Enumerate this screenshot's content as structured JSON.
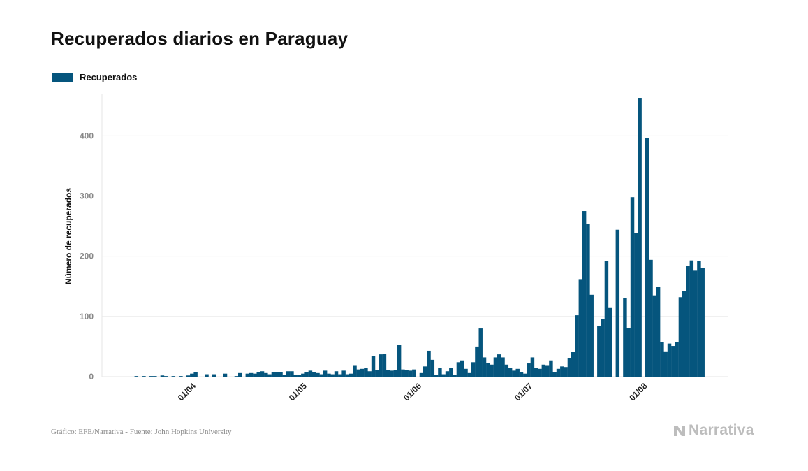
{
  "colors": {
    "bar": "#05557d",
    "grid": "#e6e6e6",
    "tick_text": "#888888",
    "brand": "#bdbdbd"
  },
  "header": {
    "title": "Recuperados diarios en Paraguay"
  },
  "legend": {
    "label": "Recuperados"
  },
  "footer": {
    "source": "Gráfico: EFE/Narrativa - Fuente: John Hopkins University",
    "brand": "Narrativa",
    "brand_icon": "narrativa-logo-icon"
  },
  "chart_data": {
    "type": "bar",
    "title": "Recuperados diarios en Paraguay",
    "ylabel": "Número de recuperados",
    "xlabel": "",
    "ylim": [
      0,
      470
    ],
    "yticks": [
      0,
      100,
      200,
      300,
      400
    ],
    "grid": true,
    "legend_position": "top-left",
    "x_start": "2020-03-15",
    "xtick_labels": [
      "01/04",
      "01/05",
      "01/06",
      "01/07",
      "01/08"
    ],
    "xtick_dates": [
      "2020-04-01",
      "2020-05-01",
      "2020-06-01",
      "2020-07-01",
      "2020-08-01"
    ],
    "series": [
      {
        "name": "Recuperados",
        "values": [
          0,
          0,
          1,
          0,
          1,
          0,
          1,
          1,
          0,
          2,
          1,
          0,
          1,
          0,
          1,
          0,
          2,
          5,
          7,
          0,
          0,
          4,
          0,
          4,
          0,
          0,
          5,
          0,
          0,
          1,
          6,
          0,
          5,
          6,
          5,
          7,
          9,
          6,
          4,
          8,
          7,
          7,
          3,
          9,
          9,
          3,
          3,
          5,
          8,
          10,
          8,
          6,
          4,
          10,
          5,
          4,
          9,
          4,
          10,
          4,
          5,
          18,
          12,
          13,
          14,
          9,
          34,
          11,
          37,
          38,
          11,
          10,
          11,
          53,
          12,
          11,
          10,
          12,
          0,
          6,
          17,
          43,
          28,
          3,
          15,
          4,
          9,
          14,
          3,
          24,
          27,
          13,
          6,
          24,
          50,
          80,
          32,
          23,
          20,
          32,
          37,
          32,
          20,
          15,
          10,
          13,
          7,
          5,
          22,
          32,
          15,
          13,
          20,
          18,
          27,
          7,
          13,
          17,
          16,
          31,
          41,
          102,
          162,
          275,
          253,
          136,
          0,
          84,
          96,
          192,
          114,
          0,
          244,
          0,
          130,
          81,
          298,
          238,
          463,
          0,
          396,
          194,
          135,
          149,
          58,
          42,
          55,
          51,
          57,
          132,
          142,
          184,
          193,
          176,
          192,
          180
        ]
      }
    ]
  }
}
